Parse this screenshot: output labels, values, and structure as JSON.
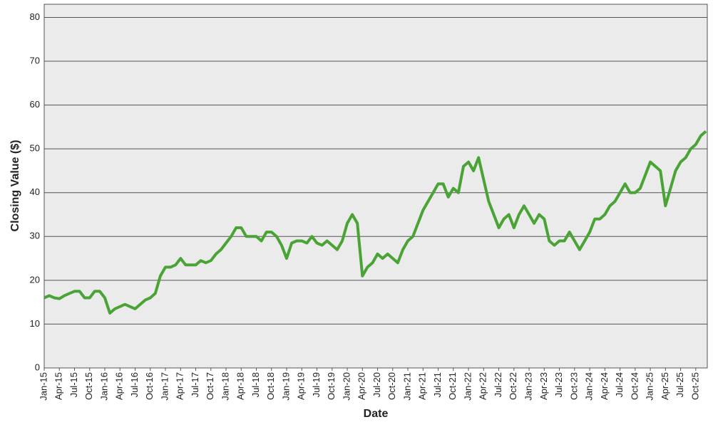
{
  "chart_data": {
    "type": "line",
    "x_label": "Date",
    "y_label": "Closing Value ($)",
    "categories": [
      "Jan-15",
      null,
      null,
      "Apr-15",
      null,
      null,
      "Jul-15",
      null,
      null,
      "Oct-15",
      null,
      null,
      "Jan-16",
      null,
      null,
      "Apr-16",
      null,
      null,
      "Jul-16",
      null,
      null,
      "Oct-16",
      null,
      null,
      "Jan-17",
      null,
      null,
      "Apr-17",
      null,
      null,
      "Jul-17",
      null,
      null,
      "Oct-17",
      null,
      null,
      "Jan-18",
      null,
      null,
      "Apr-18",
      null,
      null,
      "Jul-18",
      null,
      null,
      "Oct-18",
      null,
      null,
      "Jan-19",
      null,
      null,
      "Apr-19",
      null,
      null,
      "Jul-19",
      null,
      null,
      "Oct-19",
      null,
      null,
      "Jan-20",
      null,
      null,
      "Apr-20",
      null,
      null,
      "Jul-20",
      null,
      null,
      "Oct-20",
      null,
      null,
      "Jan-21",
      null,
      null,
      "Apr-21",
      null,
      null,
      "Jul-21",
      null,
      null,
      "Oct-21",
      null,
      null,
      "Jan-22",
      null,
      null,
      "Apr-22",
      null,
      null,
      "Jul-22",
      null,
      null,
      "Oct-22",
      null,
      null,
      "Jan-23",
      null,
      null,
      "Apr-23",
      null,
      null,
      "Jul-23",
      null,
      null,
      "Oct-23",
      null,
      null,
      "Jan-24",
      null,
      null,
      "Apr-24",
      null,
      null,
      "Jul-24",
      null,
      null,
      "Oct-24",
      null,
      null,
      "Jan-25",
      null,
      null,
      "Apr-25",
      null,
      null,
      "Jul-25",
      null,
      null,
      "Oct-25",
      null,
      null
    ],
    "series": [
      {
        "name": "Closing Value",
        "color": "#4aa335",
        "values": [
          16,
          16.5,
          16,
          15.8,
          16.5,
          17,
          17.5,
          17.5,
          16,
          16,
          17.5,
          17.5,
          16,
          12.5,
          13.5,
          14,
          14.5,
          14,
          13.5,
          14.5,
          15.5,
          16,
          17,
          21,
          23,
          23,
          23.5,
          25,
          23.5,
          23.5,
          23.5,
          24.5,
          24,
          24.5,
          26,
          27,
          28.5,
          30,
          32,
          32,
          30,
          30,
          30,
          29,
          31,
          31,
          30,
          28,
          25,
          28.5,
          29,
          29,
          28.5,
          30,
          28.5,
          28,
          29,
          28,
          27,
          29,
          33,
          35,
          33,
          21,
          23,
          24,
          26,
          25,
          26,
          25,
          24,
          27,
          29,
          30,
          33,
          36,
          38,
          40,
          42,
          42,
          39,
          41,
          40,
          46,
          47,
          45,
          48,
          43,
          38,
          35,
          32,
          34,
          35,
          32,
          35,
          37,
          35,
          33,
          35,
          34,
          29,
          28,
          29,
          29,
          31,
          29,
          27,
          29,
          31,
          34,
          34,
          35,
          37,
          38,
          40,
          42,
          40,
          40,
          41,
          44,
          47,
          46,
          45,
          37,
          41,
          45,
          47,
          48,
          50,
          51,
          53,
          54
        ]
      }
    ],
    "ylim": [
      0,
      83
    ],
    "yticks": [
      0,
      10,
      20,
      30,
      40,
      50,
      60,
      70,
      80
    ],
    "grid": true
  }
}
